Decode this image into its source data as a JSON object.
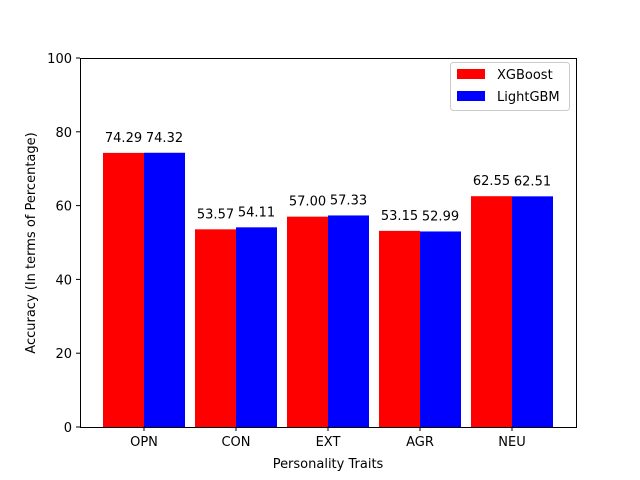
{
  "chart_data": {
    "type": "bar",
    "title": "",
    "xlabel": "Personality Traits",
    "ylabel": "Accuracy (In terms of Percentage)",
    "categories": [
      "OPN",
      "CON",
      "EXT",
      "AGR",
      "NEU"
    ],
    "ylim": [
      0,
      100
    ],
    "yticks": [
      0,
      20,
      40,
      60,
      80,
      100
    ],
    "grid": false,
    "legend_position": "top-right",
    "series": [
      {
        "name": "XGBoost",
        "color": "#ff0000",
        "values": [
          74.29,
          53.57,
          57.0,
          53.15,
          62.55
        ],
        "labels": [
          "74.29",
          "53.57",
          "57.00",
          "53.15",
          "62.55"
        ]
      },
      {
        "name": "LightGBM",
        "color": "#0000ff",
        "values": [
          74.32,
          54.11,
          57.33,
          52.99,
          62.51
        ],
        "labels": [
          "74.32",
          "54.11",
          "57.33",
          "52.99",
          "62.51"
        ]
      }
    ]
  }
}
